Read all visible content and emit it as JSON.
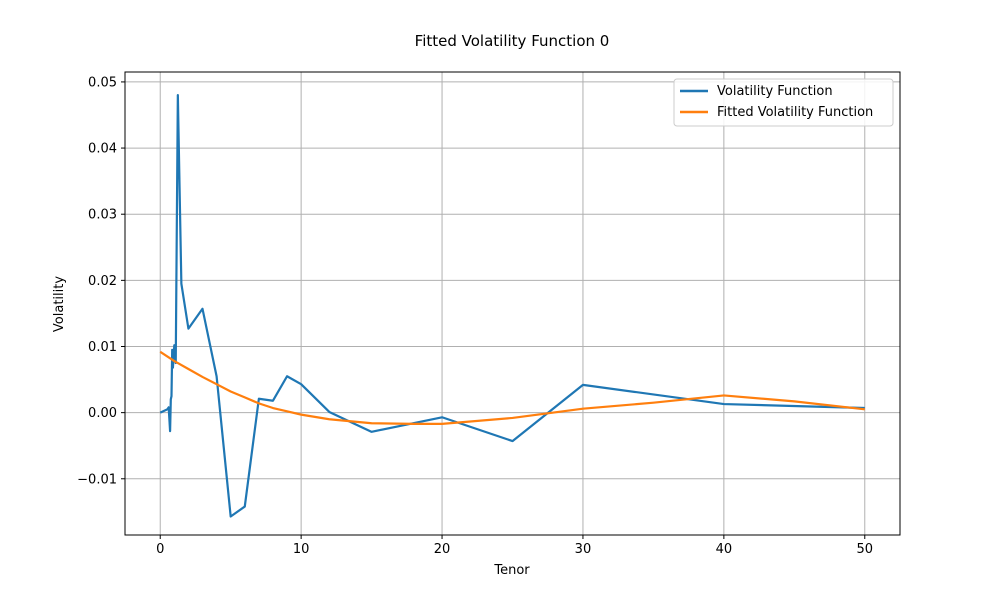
{
  "chart_data": {
    "type": "line",
    "title": "Fitted Volatility Function 0",
    "xlabel": "Tenor",
    "ylabel": "Volatility",
    "xlim": [
      -2.5,
      52.5
    ],
    "ylim": [
      -0.0185,
      0.0515
    ],
    "xticks": [
      0,
      10,
      20,
      30,
      40,
      50
    ],
    "xtick_labels": [
      "0",
      "10",
      "20",
      "30",
      "40",
      "50"
    ],
    "yticks": [
      -0.01,
      0.0,
      0.01,
      0.02,
      0.03,
      0.04,
      0.05
    ],
    "ytick_labels": [
      "−0.01",
      "0.00",
      "0.01",
      "0.02",
      "0.03",
      "0.04",
      "0.05"
    ],
    "grid": true,
    "legend_position": "top-right",
    "series": [
      {
        "name": "Volatility Function",
        "color": "#1f77b4",
        "x": [
          0,
          0.5,
          0.6,
          0.7,
          0.75,
          0.8,
          0.85,
          0.9,
          1.0,
          1.1,
          1.25,
          1.5,
          2,
          3,
          4,
          5,
          6,
          7,
          8,
          9,
          10,
          12,
          15,
          20,
          25,
          30,
          40,
          50
        ],
        "y": [
          0.0,
          0.0005,
          0.0008,
          -0.0028,
          0.002,
          0.0025,
          0.0095,
          0.0068,
          0.0102,
          0.0075,
          0.048,
          0.0195,
          0.0127,
          0.0157,
          0.0055,
          -0.0157,
          -0.0142,
          0.0021,
          0.0018,
          0.0055,
          0.0043,
          0.0001,
          -0.0029,
          -0.0007,
          -0.0043,
          0.0042,
          0.0013,
          0.0007
        ]
      },
      {
        "name": "Fitted Volatility Function",
        "color": "#ff7f0e",
        "x": [
          0,
          1,
          2,
          3,
          4,
          5,
          6,
          7,
          8,
          9,
          10,
          12,
          15,
          18,
          20,
          25,
          30,
          35,
          40,
          45,
          50
        ],
        "y": [
          0.0092,
          0.0078,
          0.0066,
          0.0054,
          0.0043,
          0.0032,
          0.0023,
          0.0014,
          0.0007,
          0.0002,
          -0.0003,
          -0.001,
          -0.0016,
          -0.0017,
          -0.0017,
          -0.0008,
          0.0006,
          0.0015,
          0.0026,
          0.0017,
          0.0005
        ]
      }
    ]
  }
}
